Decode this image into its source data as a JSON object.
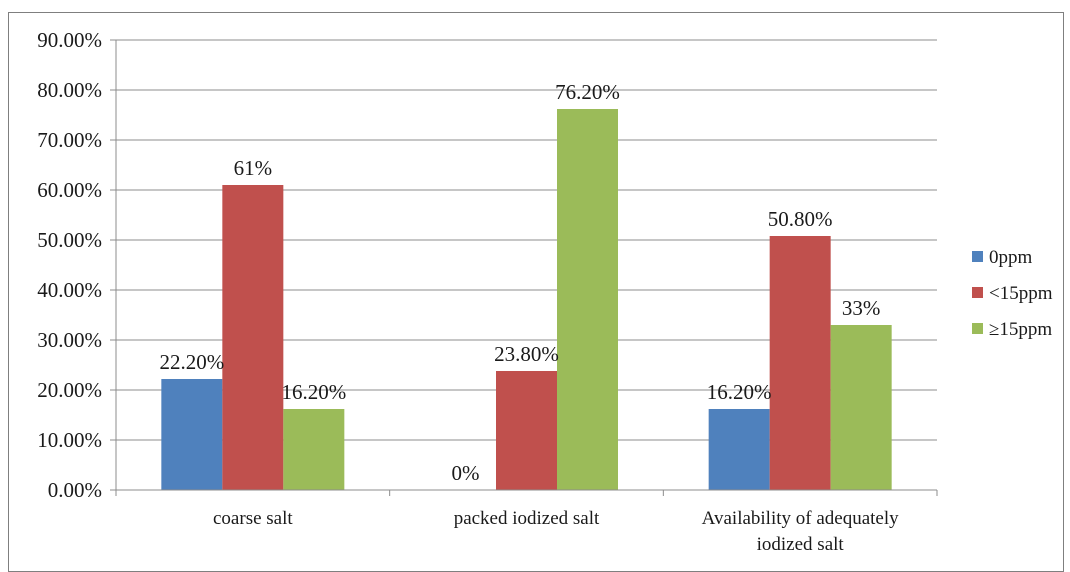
{
  "chart_data": {
    "type": "bar",
    "title": "",
    "xlabel": "",
    "ylabel": "",
    "categories": [
      "coarse salt",
      "packed iodized salt",
      "Availability of adequately iodized salt"
    ],
    "category_lines": [
      [
        "coarse salt"
      ],
      [
        "packed iodized salt"
      ],
      [
        "Availability of adequately",
        "iodized salt"
      ]
    ],
    "ylim": [
      0,
      90
    ],
    "y_ticks": [
      0,
      10,
      20,
      30,
      40,
      50,
      60,
      70,
      80,
      90
    ],
    "y_tick_labels": [
      "0.00%",
      "10.00%",
      "20.00%",
      "30.00%",
      "40.00%",
      "50.00%",
      "60.00%",
      "70.00%",
      "80.00%",
      "90.00%"
    ],
    "grid": true,
    "legend_position": "right",
    "series": [
      {
        "name": "0ppm",
        "color": "#4f81bd",
        "values": [
          22.2,
          0,
          16.2
        ],
        "labels": [
          "22.20%",
          "0%",
          "16.20%"
        ]
      },
      {
        "name": "<15ppm",
        "color": "#c0504d",
        "values": [
          61,
          23.8,
          50.8
        ],
        "labels": [
          "61%",
          "23.80%",
          "50.80%"
        ]
      },
      {
        "name": "≥15ppm",
        "color": "#9bbb59",
        "values": [
          16.2,
          76.2,
          33
        ],
        "labels": [
          "16.20%",
          "76.20%",
          "33%"
        ]
      }
    ]
  }
}
